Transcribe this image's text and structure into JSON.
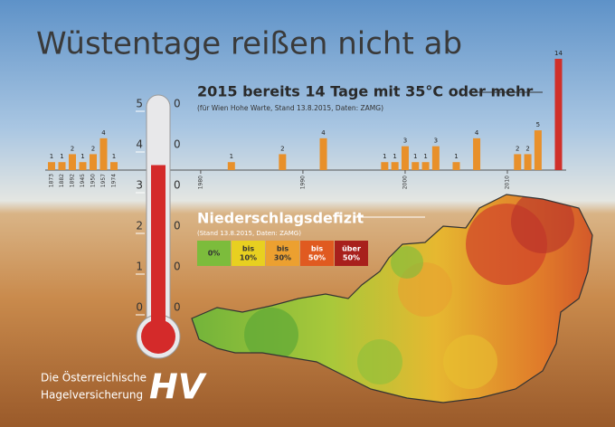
{
  "header": {
    "title": "Wüstentage reißen nicht ab"
  },
  "chart_data": [
    {
      "type": "bar",
      "title": "2015 bereits 14 Tage mit 35°C oder mehr",
      "subtitle": "(für Wien Hohe Warte, Stand 13.8.2015, Daten: ZAMG)",
      "categories": [
        "1873",
        "1882",
        "1892",
        "1945",
        "1950",
        "1957",
        "1974"
      ],
      "values": [
        1,
        1,
        2,
        1,
        2,
        4,
        1
      ],
      "color": "#e8902a",
      "ylim": [
        0,
        14
      ]
    },
    {
      "type": "timebar",
      "x": [
        1983,
        1988,
        1992,
        1998,
        1999,
        2000,
        2001,
        2002,
        2003,
        2005,
        2007,
        2011,
        2012,
        2013,
        2015
      ],
      "values": [
        1,
        2,
        4,
        1,
        1,
        3,
        1,
        1,
        3,
        1,
        4,
        2,
        2,
        5,
        14
      ],
      "colors": [
        "#e8902a",
        "#e8902a",
        "#e8902a",
        "#e8902a",
        "#e8902a",
        "#e8902a",
        "#e8902a",
        "#e8902a",
        "#e8902a",
        "#e8902a",
        "#e8902a",
        "#e8902a",
        "#e8902a",
        "#e8902a",
        "#d0302a"
      ],
      "xlim": [
        1977,
        2016
      ],
      "xticks": [
        1980,
        1990,
        2000,
        2010
      ],
      "ylim": [
        0,
        14
      ]
    },
    {
      "type": "thermometer",
      "value": 35,
      "color": "#d42a2a",
      "ylim": [
        0,
        50
      ],
      "yticks": [
        {
          "value": 50,
          "label": "5"
        },
        {
          "value": 40,
          "label": "4"
        },
        {
          "value": 30,
          "label": "3"
        },
        {
          "value": 20,
          "label": "2"
        },
        {
          "value": 10,
          "label": "1"
        },
        {
          "value": 0,
          "label": "0"
        }
      ],
      "ytick_units": [
        "0",
        "0",
        "0",
        "0",
        "0",
        "0"
      ]
    }
  ],
  "map": {
    "title": "Niederschlagsdefizit",
    "note": "(Stand 13.8.2015, Daten: ZAMG)",
    "legend": [
      {
        "lines": [
          "0%"
        ],
        "color": "#7cbc3c"
      },
      {
        "lines": [
          "bis",
          "10%"
        ],
        "color": "#e8d020"
      },
      {
        "lines": [
          "bis",
          "30%"
        ],
        "color": "#eca030"
      },
      {
        "lines": [
          "bis",
          "50%"
        ],
        "color": "#e05a20"
      },
      {
        "lines": [
          "über",
          "50%"
        ],
        "color": "#a8201c"
      }
    ]
  },
  "footer": {
    "line1": "Die Österreichische",
    "line2": "Hagelversicherung",
    "logo": "HV"
  }
}
